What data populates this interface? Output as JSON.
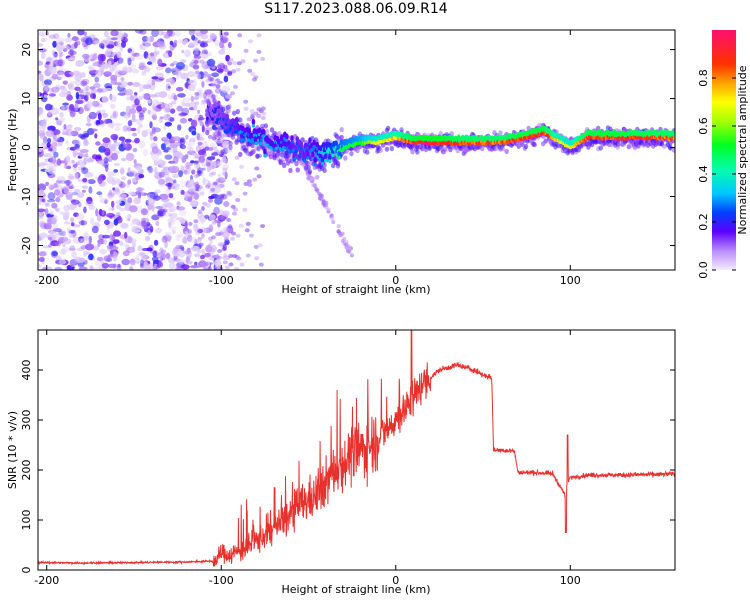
{
  "title": "S117.2023.088.06.09.R14",
  "colors": {
    "snr_line": "#e8302c",
    "axis": "#000000"
  },
  "chart_data": [
    {
      "type": "heatmap",
      "name": "spectrogram",
      "xlabel": "Height of straight line (km)",
      "ylabel": "Frequency (Hz)",
      "xlim": [
        -205,
        160
      ],
      "ylim": [
        -25,
        24
      ],
      "xticks": [
        "-200",
        "-100",
        "0",
        "100"
      ],
      "xtick_values": [
        -200,
        -100,
        0,
        100
      ],
      "yticks": [
        "-20",
        "-10",
        "0",
        "10",
        "20"
      ],
      "ytick_values": [
        -20,
        -10,
        0,
        10,
        20
      ],
      "colorbar": {
        "label": "Normalized spectral amplitude",
        "range": [
          0,
          1
        ],
        "ticks": [
          "0.0",
          "0.2",
          "0.4",
          "0.6",
          "0.8"
        ],
        "tick_values": [
          0.0,
          0.2,
          0.4,
          0.6,
          0.8
        ]
      },
      "ridge": {
        "x": [
          -105,
          -95,
          -85,
          -75,
          -65,
          -55,
          -45,
          -38,
          -30,
          -20,
          -10,
          0,
          10,
          20,
          40,
          60,
          75,
          85,
          95,
          100,
          110,
          130,
          160
        ],
        "freq": [
          7,
          4,
          2,
          1,
          0,
          -1,
          -2,
          -1,
          0,
          1,
          1,
          2,
          1,
          1,
          1,
          1,
          2,
          3,
          1,
          0,
          2,
          2,
          2
        ],
        "amplitude": [
          0.2,
          0.25,
          0.3,
          0.3,
          0.3,
          0.25,
          0.3,
          0.4,
          0.5,
          0.55,
          0.7,
          0.75,
          0.9,
          0.95,
          0.85,
          0.85,
          0.9,
          0.9,
          0.7,
          0.7,
          0.9,
          0.9,
          0.85
        ]
      }
    },
    {
      "type": "line",
      "name": "snr",
      "xlabel": "Height of straight line (km)",
      "ylabel": "SNR (10 * v/v)",
      "xlim": [
        -205,
        160
      ],
      "ylim": [
        0,
        480
      ],
      "xticks": [
        "-200",
        "-100",
        "0",
        "100"
      ],
      "xtick_values": [
        -200,
        -100,
        0,
        100
      ],
      "yticks": [
        "0",
        "100",
        "200",
        "300",
        "400"
      ],
      "ytick_values": [
        0,
        100,
        200,
        300,
        400
      ],
      "series": [
        {
          "x": [
            -205,
            -180,
            -150,
            -120,
            -103,
            -100,
            -95,
            -85,
            -75,
            -65,
            -55,
            -45,
            -35,
            -25,
            -15,
            -5,
            5,
            15,
            25,
            35,
            45,
            50,
            55,
            56,
            60,
            68,
            70,
            80,
            90,
            97,
            98,
            100,
            110,
            130,
            160
          ],
          "y": [
            15,
            14,
            15,
            16,
            18,
            35,
            30,
            45,
            70,
            95,
            130,
            150,
            200,
            230,
            250,
            280,
            320,
            370,
            400,
            410,
            400,
            390,
            385,
            240,
            240,
            238,
            195,
            195,
            192,
            150,
            170,
            185,
            190,
            190,
            192
          ]
        }
      ]
    }
  ]
}
